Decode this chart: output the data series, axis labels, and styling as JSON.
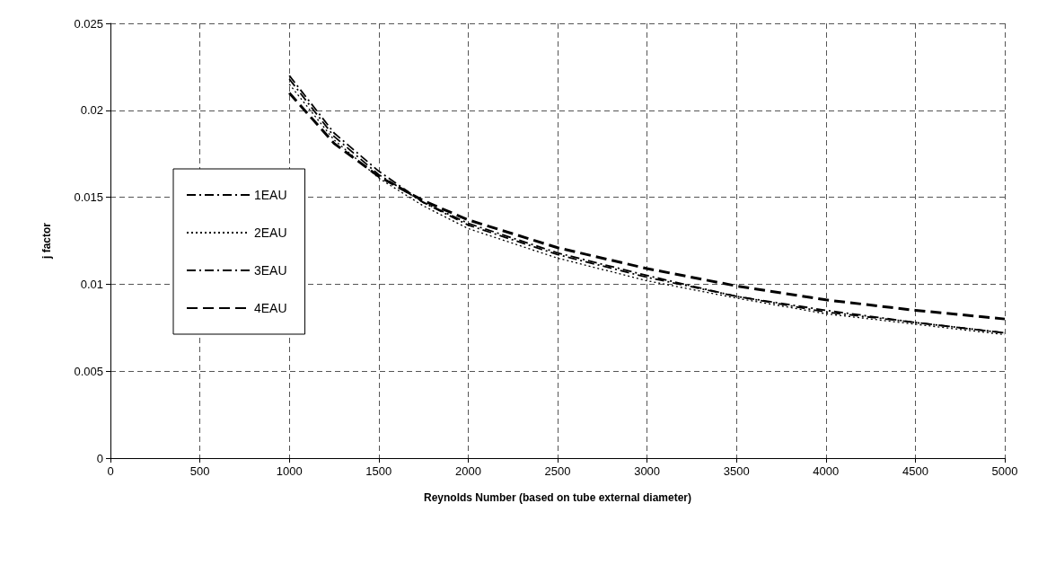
{
  "chart_data": {
    "type": "line",
    "xlabel": "Reynolds Number (based on tube external diameter)",
    "ylabel": "j factor",
    "xlim": [
      0,
      5000
    ],
    "xticks": [
      0,
      500,
      1000,
      1500,
      2000,
      2500,
      3000,
      3500,
      4000,
      4500,
      5000
    ],
    "ylim": [
      0,
      0.025
    ],
    "yticks": [
      0,
      0.005,
      0.01,
      0.015,
      0.02,
      0.025
    ],
    "grid": true,
    "legend": "left",
    "marker": "none",
    "x": [
      1000,
      1250,
      1500,
      1750,
      2000,
      2500,
      3000,
      3500,
      4000,
      4500,
      5000
    ],
    "series": [
      {
        "name": "1EAU",
        "color": "#000000",
        "line_style": "dashdot",
        "values": [
          0.0218,
          0.0185,
          0.0163,
          0.0147,
          0.0135,
          0.0118,
          0.0105,
          0.0093,
          0.0085,
          0.0078,
          0.0072
        ]
      },
      {
        "name": "2EAU",
        "color": "#000000",
        "line_style": "dotted",
        "values": [
          0.0215,
          0.0183,
          0.0161,
          0.0145,
          0.0132,
          0.0115,
          0.0102,
          0.0092,
          0.0083,
          0.0077,
          0.0071
        ]
      },
      {
        "name": "3EAU",
        "color": "#000000",
        "line_style": "dashdot",
        "values": [
          0.022,
          0.0187,
          0.0165,
          0.0147,
          0.0134,
          0.0117,
          0.0104,
          0.0093,
          0.0084,
          0.0078,
          0.0072
        ]
      },
      {
        "name": "4EAU",
        "color": "#000000",
        "line_style": "dashed",
        "values": [
          0.021,
          0.0181,
          0.0162,
          0.0148,
          0.0137,
          0.0121,
          0.0109,
          0.0099,
          0.0091,
          0.0085,
          0.008
        ]
      }
    ]
  }
}
